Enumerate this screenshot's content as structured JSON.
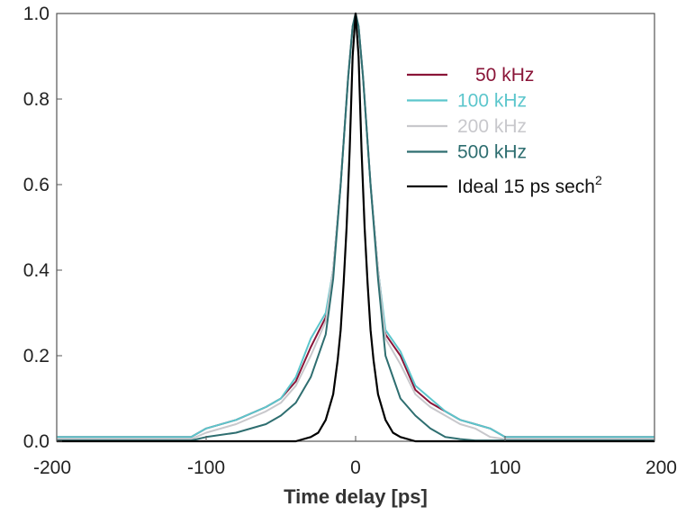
{
  "chart_data": {
    "type": "line",
    "xlabel": "Time delay [ps]",
    "ylabel": "",
    "xlim": [
      -200,
      200
    ],
    "ylim": [
      0,
      1.0
    ],
    "x_ticks": [
      "-200",
      "-100",
      "0",
      "100",
      "200"
    ],
    "y_ticks": [
      "0.0",
      "0.2",
      "0.4",
      "0.6",
      "0.8",
      "1.0"
    ],
    "grid": false,
    "legend_position": "top-right",
    "series": [
      {
        "name": "50 kHz",
        "color": "#8a1538",
        "x": [
          -200,
          -110,
          -100,
          -80,
          -60,
          -50,
          -40,
          -30,
          -20,
          -15,
          -10,
          -5,
          -2,
          0,
          2,
          5,
          10,
          15,
          20,
          30,
          40,
          50,
          60,
          70,
          80,
          90,
          100,
          200
        ],
        "y": [
          0.01,
          0.01,
          0.03,
          0.05,
          0.08,
          0.1,
          0.14,
          0.22,
          0.29,
          0.4,
          0.6,
          0.85,
          0.97,
          1.0,
          0.97,
          0.85,
          0.6,
          0.4,
          0.25,
          0.2,
          0.12,
          0.09,
          0.07,
          0.05,
          0.04,
          0.03,
          0.01,
          0.01
        ]
      },
      {
        "name": "100 kHz",
        "color": "#5cc6cc",
        "x": [
          -200,
          -110,
          -100,
          -80,
          -60,
          -50,
          -40,
          -30,
          -20,
          -15,
          -10,
          -5,
          -2,
          0,
          2,
          5,
          10,
          15,
          20,
          30,
          40,
          50,
          60,
          70,
          80,
          90,
          100,
          200
        ],
        "y": [
          0.01,
          0.01,
          0.03,
          0.05,
          0.08,
          0.1,
          0.15,
          0.24,
          0.3,
          0.4,
          0.6,
          0.85,
          0.97,
          1.0,
          0.97,
          0.85,
          0.6,
          0.4,
          0.26,
          0.21,
          0.13,
          0.1,
          0.07,
          0.05,
          0.04,
          0.03,
          0.01,
          0.01
        ]
      },
      {
        "name": "200 kHz",
        "color": "#c8c8cc",
        "x": [
          -200,
          -110,
          -100,
          -80,
          -60,
          -50,
          -40,
          -30,
          -20,
          -15,
          -10,
          -5,
          -2,
          0,
          2,
          5,
          10,
          15,
          20,
          30,
          40,
          50,
          60,
          70,
          80,
          90,
          100,
          200
        ],
        "y": [
          0.005,
          0.005,
          0.02,
          0.04,
          0.07,
          0.09,
          0.13,
          0.2,
          0.28,
          0.4,
          0.6,
          0.85,
          0.97,
          1.0,
          0.97,
          0.85,
          0.6,
          0.4,
          0.24,
          0.18,
          0.11,
          0.08,
          0.06,
          0.04,
          0.03,
          0.01,
          0.005,
          0.005
        ]
      },
      {
        "name": "500 kHz",
        "color": "#2e6e70",
        "x": [
          -200,
          -110,
          -100,
          -80,
          -60,
          -50,
          -40,
          -30,
          -20,
          -15,
          -10,
          -5,
          -2,
          0,
          2,
          5,
          10,
          15,
          20,
          30,
          40,
          50,
          60,
          70,
          80,
          90,
          100,
          200
        ],
        "y": [
          0.002,
          0.002,
          0.01,
          0.02,
          0.04,
          0.06,
          0.09,
          0.15,
          0.25,
          0.38,
          0.6,
          0.85,
          0.97,
          1.0,
          0.97,
          0.85,
          0.6,
          0.38,
          0.2,
          0.1,
          0.06,
          0.03,
          0.01,
          0.005,
          0.002,
          0.002,
          0.002,
          0.002
        ]
      },
      {
        "name": "Ideal 15 ps sech",
        "name_superscript": "2",
        "color": "#000000",
        "x": [
          -200,
          -60,
          -40,
          -30,
          -25,
          -20,
          -15,
          -12,
          -10,
          -8,
          -6,
          -4,
          -2,
          0,
          2,
          4,
          6,
          8,
          10,
          12,
          15,
          20,
          25,
          30,
          40,
          60,
          200
        ],
        "y": [
          0.0,
          0.0,
          0.0,
          0.01,
          0.02,
          0.05,
          0.11,
          0.19,
          0.26,
          0.37,
          0.5,
          0.68,
          0.9,
          1.0,
          0.9,
          0.68,
          0.5,
          0.37,
          0.26,
          0.19,
          0.11,
          0.05,
          0.02,
          0.01,
          0.0,
          0.0,
          0.0
        ]
      }
    ]
  }
}
